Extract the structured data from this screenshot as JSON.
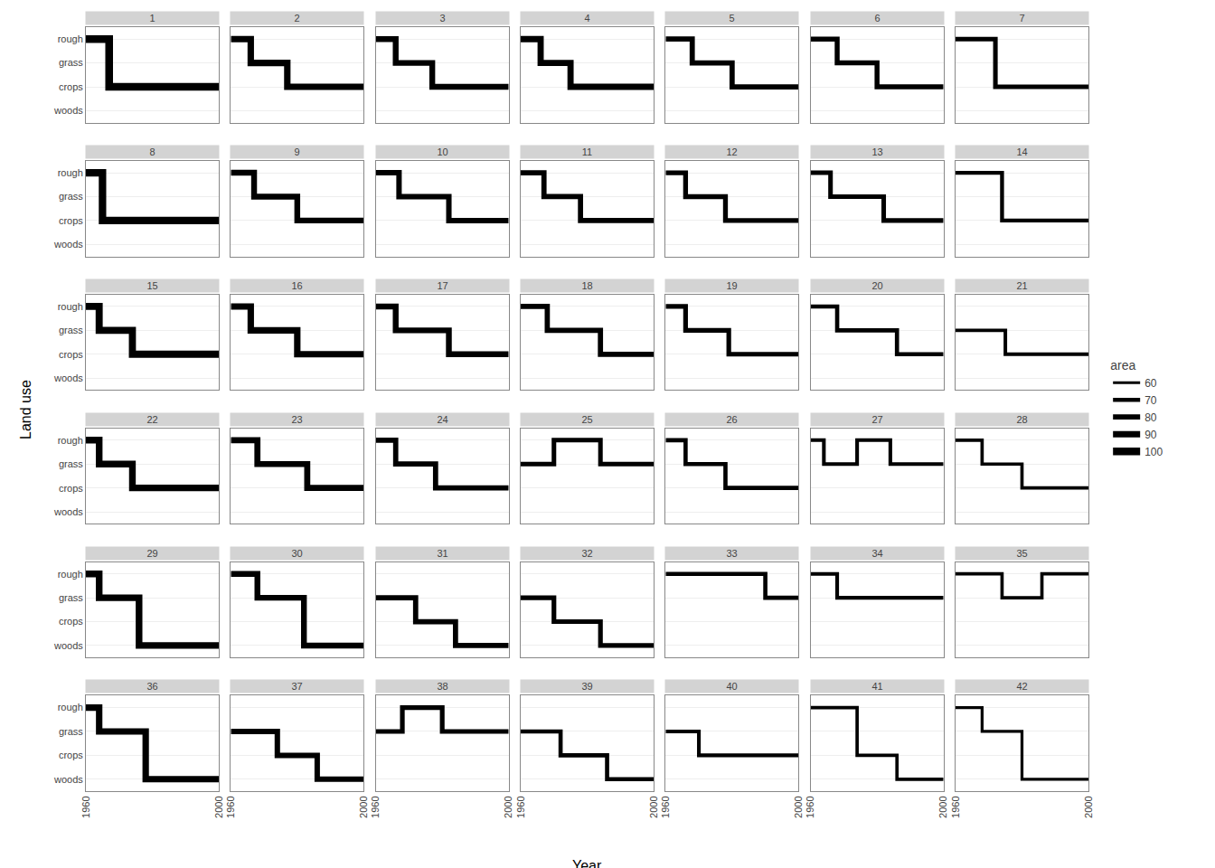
{
  "chart_data": {
    "type": "line",
    "xlabel": "Year",
    "ylabel": "Land use",
    "color": "#000000",
    "grid": true,
    "xlim": [
      1960,
      2000
    ],
    "xticks": [
      1960,
      2000
    ],
    "ylim": [
      0.5,
      4.5
    ],
    "yticks": [
      {
        "value": 1,
        "label": "woods"
      },
      {
        "value": 2,
        "label": "crops"
      },
      {
        "value": 3,
        "label": "grass"
      },
      {
        "value": 4,
        "label": "rough"
      }
    ],
    "series": [
      {
        "name": "1",
        "x": [
          1960,
          1967,
          1967,
          2000
        ],
        "values": [
          4,
          4,
          2,
          2
        ],
        "area": 100
      },
      {
        "name": "2",
        "x": [
          1960,
          1966,
          1966,
          1977,
          1977,
          2000
        ],
        "values": [
          4,
          4,
          3,
          3,
          2,
          2
        ],
        "area": 90
      },
      {
        "name": "3",
        "x": [
          1960,
          1966,
          1966,
          1977,
          1977,
          2000
        ],
        "values": [
          4,
          4,
          3,
          3,
          2,
          2
        ],
        "area": 85
      },
      {
        "name": "4",
        "x": [
          1960,
          1966,
          1966,
          1975,
          1975,
          2000
        ],
        "values": [
          4,
          4,
          3,
          3,
          2,
          2
        ],
        "area": 88
      },
      {
        "name": "5",
        "x": [
          1960,
          1968,
          1968,
          1980,
          1980,
          2000
        ],
        "values": [
          4,
          4,
          3,
          3,
          2,
          2
        ],
        "area": 80
      },
      {
        "name": "6",
        "x": [
          1960,
          1968,
          1968,
          1980,
          1980,
          2000
        ],
        "values": [
          4,
          4,
          3,
          3,
          2,
          2
        ],
        "area": 78
      },
      {
        "name": "7",
        "x": [
          1960,
          1972,
          1972,
          2000
        ],
        "values": [
          4,
          4,
          2,
          2
        ],
        "area": 75
      },
      {
        "name": "8",
        "x": [
          1960,
          1965,
          1965,
          2000
        ],
        "values": [
          4,
          4,
          2,
          2
        ],
        "area": 98
      },
      {
        "name": "9",
        "x": [
          1960,
          1967,
          1967,
          1980,
          1980,
          2000
        ],
        "values": [
          4,
          4,
          3,
          3,
          2,
          2
        ],
        "area": 85
      },
      {
        "name": "10",
        "x": [
          1960,
          1967,
          1967,
          1982,
          1982,
          2000
        ],
        "values": [
          4,
          4,
          3,
          3,
          2,
          2
        ],
        "area": 82
      },
      {
        "name": "11",
        "x": [
          1960,
          1967,
          1967,
          1978,
          1978,
          2000
        ],
        "values": [
          4,
          4,
          3,
          3,
          2,
          2
        ],
        "area": 80
      },
      {
        "name": "12",
        "x": [
          1960,
          1966,
          1966,
          1978,
          1978,
          2000
        ],
        "values": [
          4,
          4,
          3,
          3,
          2,
          2
        ],
        "area": 77
      },
      {
        "name": "13",
        "x": [
          1960,
          1966,
          1966,
          1982,
          1982,
          2000
        ],
        "values": [
          4,
          4,
          3,
          3,
          2,
          2
        ],
        "area": 75
      },
      {
        "name": "14",
        "x": [
          1960,
          1974,
          1974,
          2000
        ],
        "values": [
          4,
          4,
          2,
          2
        ],
        "area": 70
      },
      {
        "name": "15",
        "x": [
          1960,
          1964,
          1964,
          1974,
          1974,
          2000
        ],
        "values": [
          4,
          4,
          3,
          3,
          2,
          2
        ],
        "area": 95
      },
      {
        "name": "16",
        "x": [
          1960,
          1966,
          1966,
          1980,
          1980,
          2000
        ],
        "values": [
          4,
          4,
          3,
          3,
          2,
          2
        ],
        "area": 90
      },
      {
        "name": "17",
        "x": [
          1960,
          1966,
          1966,
          1982,
          1982,
          2000
        ],
        "values": [
          4,
          4,
          3,
          3,
          2,
          2
        ],
        "area": 85
      },
      {
        "name": "18",
        "x": [
          1960,
          1968,
          1968,
          1984,
          1984,
          2000
        ],
        "values": [
          4,
          4,
          3,
          3,
          2,
          2
        ],
        "area": 80
      },
      {
        "name": "19",
        "x": [
          1960,
          1966,
          1966,
          1979,
          1979,
          2000
        ],
        "values": [
          4,
          4,
          3,
          3,
          2,
          2
        ],
        "area": 76
      },
      {
        "name": "20",
        "x": [
          1960,
          1968,
          1968,
          1986,
          1986,
          2000
        ],
        "values": [
          4,
          4,
          3,
          3,
          2,
          2
        ],
        "area": 72
      },
      {
        "name": "21",
        "x": [
          1960,
          1975,
          1975,
          2000
        ],
        "values": [
          3,
          3,
          2,
          2
        ],
        "area": 67
      },
      {
        "name": "22",
        "x": [
          1960,
          1964,
          1964,
          1974,
          1974,
          2000
        ],
        "values": [
          4,
          4,
          3,
          3,
          2,
          2
        ],
        "area": 92
      },
      {
        "name": "23",
        "x": [
          1960,
          1968,
          1968,
          1983,
          1983,
          2000
        ],
        "values": [
          4,
          4,
          3,
          3,
          2,
          2
        ],
        "area": 87
      },
      {
        "name": "24",
        "x": [
          1960,
          1966,
          1966,
          1978,
          1978,
          2000
        ],
        "values": [
          4,
          4,
          3,
          3,
          2,
          2
        ],
        "area": 80
      },
      {
        "name": "25",
        "x": [
          1960,
          1970,
          1970,
          1984,
          1984,
          2000
        ],
        "values": [
          3,
          3,
          4,
          4,
          3,
          3
        ],
        "area": 75
      },
      {
        "name": "26",
        "x": [
          1960,
          1966,
          1966,
          1978,
          1978,
          2000
        ],
        "values": [
          4,
          4,
          3,
          3,
          2,
          2
        ],
        "area": 72
      },
      {
        "name": "27",
        "x": [
          1960,
          1964,
          1964,
          1974,
          1974,
          1984,
          1984,
          2000
        ],
        "values": [
          4,
          4,
          3,
          3,
          4,
          4,
          3,
          3
        ],
        "area": 68
      },
      {
        "name": "28",
        "x": [
          1960,
          1968,
          1968,
          1980,
          1980,
          2000
        ],
        "values": [
          4,
          4,
          3,
          3,
          2,
          2
        ],
        "area": 65
      },
      {
        "name": "29",
        "x": [
          1960,
          1964,
          1964,
          1976,
          1976,
          2000
        ],
        "values": [
          4,
          4,
          3,
          3,
          1,
          1
        ],
        "area": 92
      },
      {
        "name": "30",
        "x": [
          1960,
          1968,
          1968,
          1982,
          1982,
          2000
        ],
        "values": [
          4,
          4,
          3,
          3,
          1,
          1
        ],
        "area": 85
      },
      {
        "name": "31",
        "x": [
          1960,
          1972,
          1972,
          1984,
          1984,
          2000
        ],
        "values": [
          3,
          3,
          2,
          2,
          1,
          1
        ],
        "area": 80
      },
      {
        "name": "32",
        "x": [
          1960,
          1970,
          1970,
          1984,
          1984,
          2000
        ],
        "values": [
          3,
          3,
          2,
          2,
          1,
          1
        ],
        "area": 76
      },
      {
        "name": "33",
        "x": [
          1960,
          1990,
          1990,
          2000
        ],
        "values": [
          4,
          4,
          3,
          3
        ],
        "area": 72
      },
      {
        "name": "34",
        "x": [
          1960,
          1968,
          1968,
          2000
        ],
        "values": [
          4,
          4,
          3,
          3
        ],
        "area": 68
      },
      {
        "name": "35",
        "x": [
          1960,
          1974,
          1974,
          1986,
          1986,
          2000
        ],
        "values": [
          4,
          4,
          3,
          3,
          4,
          4
        ],
        "area": 65
      },
      {
        "name": "36",
        "x": [
          1960,
          1964,
          1964,
          1978,
          1978,
          2000
        ],
        "values": [
          4,
          4,
          3,
          3,
          1,
          1
        ],
        "area": 90
      },
      {
        "name": "37",
        "x": [
          1960,
          1974,
          1974,
          1986,
          1986,
          2000
        ],
        "values": [
          3,
          3,
          2,
          2,
          1,
          1
        ],
        "area": 82
      },
      {
        "name": "38",
        "x": [
          1960,
          1968,
          1968,
          1980,
          1980,
          2000
        ],
        "values": [
          3,
          3,
          4,
          4,
          3,
          3
        ],
        "area": 76
      },
      {
        "name": "39",
        "x": [
          1960,
          1972,
          1972,
          1986,
          1986,
          2000
        ],
        "values": [
          3,
          3,
          2,
          2,
          1,
          1
        ],
        "area": 72
      },
      {
        "name": "40",
        "x": [
          1960,
          1970,
          1970,
          2000
        ],
        "values": [
          3,
          3,
          2,
          2
        ],
        "area": 68
      },
      {
        "name": "41",
        "x": [
          1960,
          1974,
          1974,
          1986,
          1986,
          2000
        ],
        "values": [
          4,
          4,
          2,
          2,
          1,
          1
        ],
        "area": 65
      },
      {
        "name": "42",
        "x": [
          1960,
          1968,
          1968,
          1980,
          1980,
          2000
        ],
        "values": [
          4,
          4,
          3,
          3,
          1,
          1
        ],
        "area": 62
      }
    ],
    "size_legend": {
      "title": "area",
      "values": [
        60,
        70,
        80,
        90,
        100
      ]
    }
  }
}
